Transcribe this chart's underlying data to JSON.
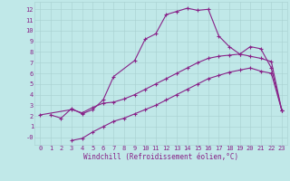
{
  "bg_color": "#c0e8e8",
  "grid_color": "#a8d0d0",
  "line_color": "#882288",
  "marker": "+",
  "markersize": 3,
  "markeredgewidth": 0.8,
  "linewidth": 0.8,
  "xlabel": "Windchill (Refroidissement éolien,°C)",
  "xlabel_fontsize": 5.5,
  "tick_fontsize": 5.0,
  "xlim": [
    -0.5,
    23.5
  ],
  "ylim": [
    -0.7,
    12.7
  ],
  "yticks": [
    0,
    1,
    2,
    3,
    4,
    5,
    6,
    7,
    8,
    9,
    10,
    11,
    12
  ],
  "ytick_labels": [
    "-0",
    "1",
    "2",
    "3",
    "4",
    "5",
    "6",
    "7",
    "8",
    "9",
    "10",
    "11",
    "12"
  ],
  "xticks": [
    0,
    1,
    2,
    3,
    4,
    5,
    6,
    7,
    8,
    9,
    10,
    11,
    12,
    13,
    14,
    15,
    16,
    17,
    18,
    19,
    20,
    21,
    22,
    23
  ],
  "line1_x": [
    1,
    2,
    3,
    4,
    5,
    6,
    7,
    9,
    10,
    11,
    12,
    13,
    14,
    15,
    16,
    17,
    18,
    19,
    20,
    21,
    22,
    23
  ],
  "line1_y": [
    2.1,
    1.8,
    2.7,
    2.2,
    2.6,
    3.5,
    5.7,
    7.2,
    9.2,
    9.7,
    11.5,
    11.8,
    12.1,
    11.9,
    12.0,
    9.5,
    8.5,
    7.8,
    8.5,
    8.3,
    6.5,
    2.5
  ],
  "line2_x": [
    0,
    3,
    4,
    5,
    6,
    7,
    8,
    9,
    10,
    11,
    12,
    13,
    14,
    15,
    16,
    17,
    18,
    19,
    20,
    21,
    22,
    23
  ],
  "line2_y": [
    2.1,
    2.6,
    2.3,
    2.8,
    3.2,
    3.3,
    3.6,
    4.0,
    4.5,
    5.0,
    5.5,
    6.0,
    6.5,
    7.0,
    7.4,
    7.6,
    7.7,
    7.8,
    7.6,
    7.4,
    7.1,
    2.5
  ],
  "line3_x": [
    3,
    4,
    5,
    6,
    7,
    8,
    9,
    10,
    11,
    12,
    13,
    14,
    15,
    16,
    17,
    18,
    19,
    20,
    21,
    22,
    23
  ],
  "line3_y": [
    -0.3,
    -0.1,
    0.5,
    1.0,
    1.5,
    1.8,
    2.2,
    2.6,
    3.0,
    3.5,
    4.0,
    4.5,
    5.0,
    5.5,
    5.8,
    6.1,
    6.3,
    6.5,
    6.2,
    6.0,
    2.5
  ]
}
